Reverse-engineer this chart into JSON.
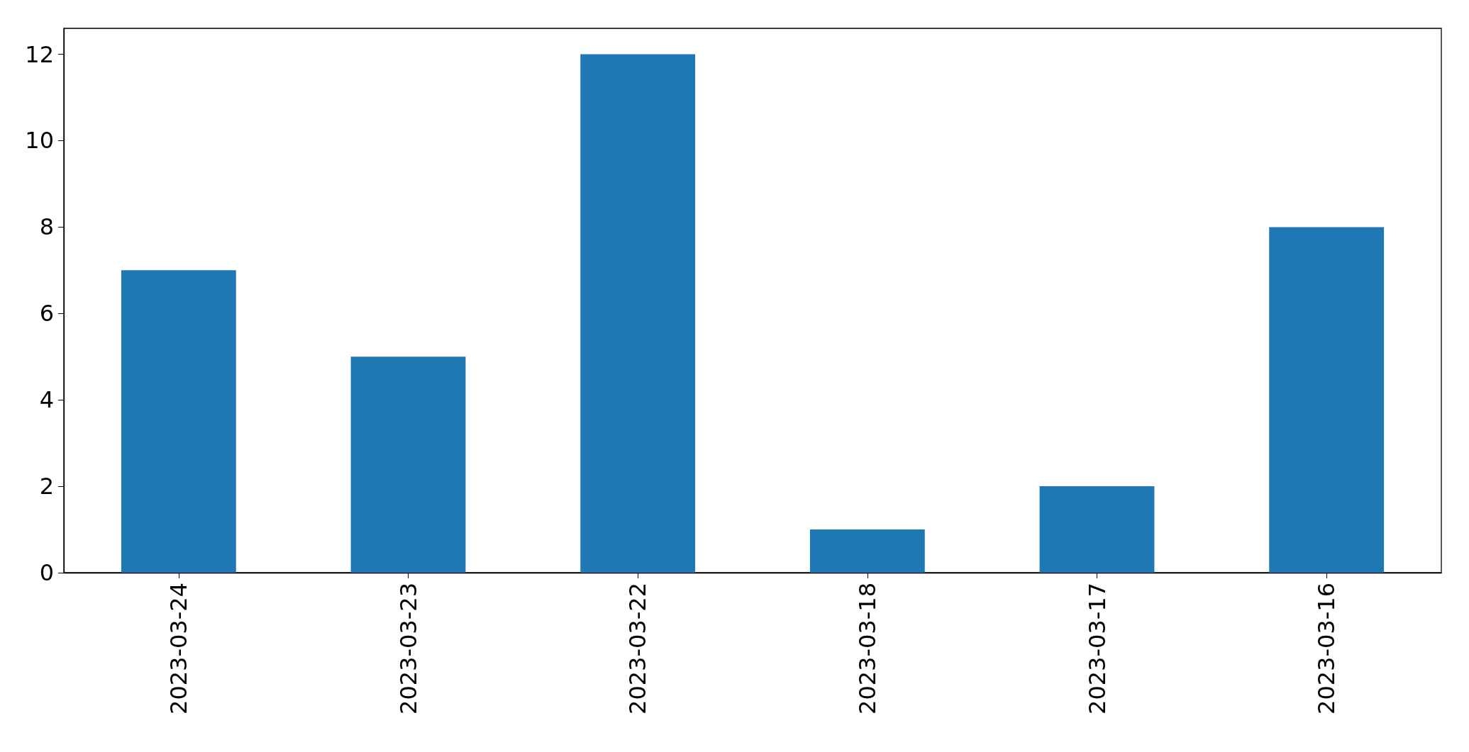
{
  "chart_data": {
    "type": "bar",
    "categories": [
      "2023-03-24",
      "2023-03-23",
      "2023-03-22",
      "2023-03-18",
      "2023-03-17",
      "2023-03-16"
    ],
    "values": [
      7,
      5,
      12,
      1,
      2,
      8
    ],
    "color": "#1f77b4",
    "ylim": [
      0,
      12.6
    ],
    "yticks": [
      0,
      2,
      4,
      6,
      8,
      10,
      12
    ],
    "grid": false
  }
}
